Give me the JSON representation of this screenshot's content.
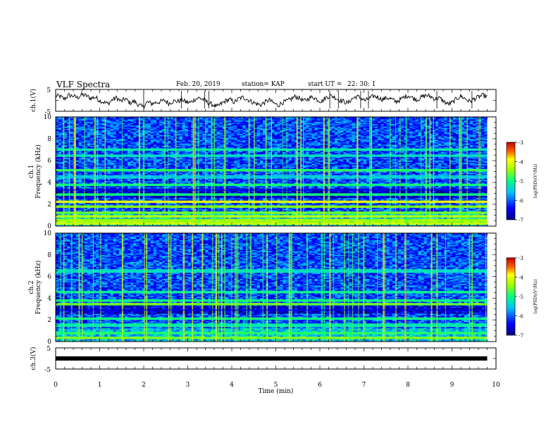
{
  "header": {
    "title": "VLF Spectra",
    "date": "Feb. 20, 2019",
    "station": "station= KAP",
    "start_ut_label": "start  UT  =",
    "start_ut_value": "22: 30: 1"
  },
  "chart_data": [
    {
      "type": "line",
      "title": "",
      "ylabel": "ch.1(V)",
      "ylim": [
        -5,
        5
      ],
      "yticks": [
        "5",
        "-5"
      ],
      "xlim": [
        0,
        10
      ],
      "description_series": "ch.1 waveform amplitude",
      "series": [
        {
          "values": [
            2.1,
            1.8,
            0.6,
            2.4,
            2.0,
            1.2,
            2.6,
            2.2,
            0.9,
            1.5,
            0.1,
            -0.8,
            -1.6,
            0.3,
            1.2,
            -0.5,
            0.8,
            -1.2,
            -0.4,
            -2.0,
            -3.1,
            -0.8,
            -1.5,
            -1.0,
            -0.6,
            0.0,
            -1.4,
            -0.3,
            -0.5,
            0.2,
            -0.8,
            -1.0,
            0.6,
            1.2,
            0.2,
            -1.1,
            -1.9,
            -3.0,
            -1.6,
            -0.2,
            0.4,
            -0.9,
            0.8,
            1.4,
            0.5,
            -0.7,
            -1.5,
            -2.1,
            -0.9,
            0.2,
            -1.2,
            -2.3,
            -1.0,
            -0.4,
            0.6,
            1.8,
            0.9,
            -0.3,
            0.8,
            1.6,
            0.4,
            -0.5,
            1.3,
            2.2,
            1.5,
            0.2,
            -0.4,
            -1.3,
            0.7,
            1.8,
            1.1,
            -0.2,
            0.9,
            2.0,
            1.4,
            0.4,
            1.2,
            0.6,
            -0.6,
            0.2,
            1.6,
            2.2,
            1.0,
            0.3,
            1.5,
            2.3,
            1.8,
            0.6,
            1.1,
            -0.4,
            -1.8,
            -1.0,
            0.8,
            1.9,
            0.7,
            -0.5,
            0.6,
            1.6,
            2.3,
            1.7
          ]
        }
      ]
    },
    {
      "type": "heatmap",
      "title": "",
      "panel": "ch.1",
      "ylabel": "Frequency (kHz)",
      "ylim": [
        0,
        10
      ],
      "yticks": [
        0,
        2,
        4,
        6,
        8,
        10
      ],
      "xlim": [
        0,
        10
      ],
      "colorbar": {
        "label": "log(PSD)(V²/Hz)",
        "range": [
          -7,
          -3
        ],
        "ticks": [
          -3,
          -4,
          -5,
          -6,
          -7
        ]
      },
      "bands_khz": [
        {
          "freq": 0.2,
          "level": -4.2
        },
        {
          "freq": 0.5,
          "level": -4.4
        },
        {
          "freq": 0.9,
          "level": -4.3
        },
        {
          "freq": 1.25,
          "level": -4.6
        },
        {
          "freq": 1.8,
          "level": -4.5
        },
        {
          "freq": 2.2,
          "level": -4.0
        },
        {
          "freq": 2.9,
          "level": -5.0
        },
        {
          "freq": 3.3,
          "level": -6.5
        },
        {
          "freq": 3.75,
          "level": -5.0
        },
        {
          "freq": 4.5,
          "level": -5.5
        },
        {
          "freq": 5.15,
          "level": -4.9
        },
        {
          "freq": 6.45,
          "level": -5.3
        },
        {
          "freq": 7.0,
          "level": -5.2
        }
      ]
    },
    {
      "type": "heatmap",
      "title": "",
      "panel": "ch.2",
      "ylabel": "Frequency (kHz)",
      "ylim": [
        0,
        10
      ],
      "yticks": [
        0,
        2,
        4,
        6,
        8,
        10
      ],
      "xlim": [
        0,
        10
      ],
      "colorbar": {
        "label": "log(PSD)(V²/Hz)",
        "range": [
          -7,
          -3
        ],
        "ticks": [
          -3,
          -4,
          -5,
          -6,
          -7
        ]
      },
      "bands_khz": [
        {
          "freq": 0.3,
          "level": -4.5
        },
        {
          "freq": 0.8,
          "level": -4.9
        },
        {
          "freq": 1.5,
          "level": -5.2
        },
        {
          "freq": 2.1,
          "level": -5.0
        },
        {
          "freq": 2.9,
          "level": -6.6
        },
        {
          "freq": 3.4,
          "level": -4.6
        },
        {
          "freq": 3.8,
          "level": -5.0
        },
        {
          "freq": 4.6,
          "level": -5.1
        },
        {
          "freq": 6.5,
          "level": -5.3
        }
      ]
    },
    {
      "type": "line",
      "title": "",
      "ylabel": "ch.3(V)",
      "ylim": [
        -5,
        5
      ],
      "yticks": [
        "5",
        "-5"
      ],
      "xlim": [
        0,
        10
      ],
      "xlabel": "Time (min)",
      "xticks": [
        "0",
        "1",
        "2",
        "3",
        "4",
        "5",
        "6",
        "7",
        "8",
        "9",
        "10"
      ],
      "series": [
        {
          "x": [
            0,
            9.8
          ],
          "values": [
            0.0,
            0.0
          ]
        }
      ]
    }
  ],
  "colors": {
    "cmap": [
      "#000080",
      "#0000ff",
      "#00a0ff",
      "#00ffff",
      "#00ff00",
      "#ffff00",
      "#ff8000",
      "#ff0000",
      "#800000"
    ]
  }
}
